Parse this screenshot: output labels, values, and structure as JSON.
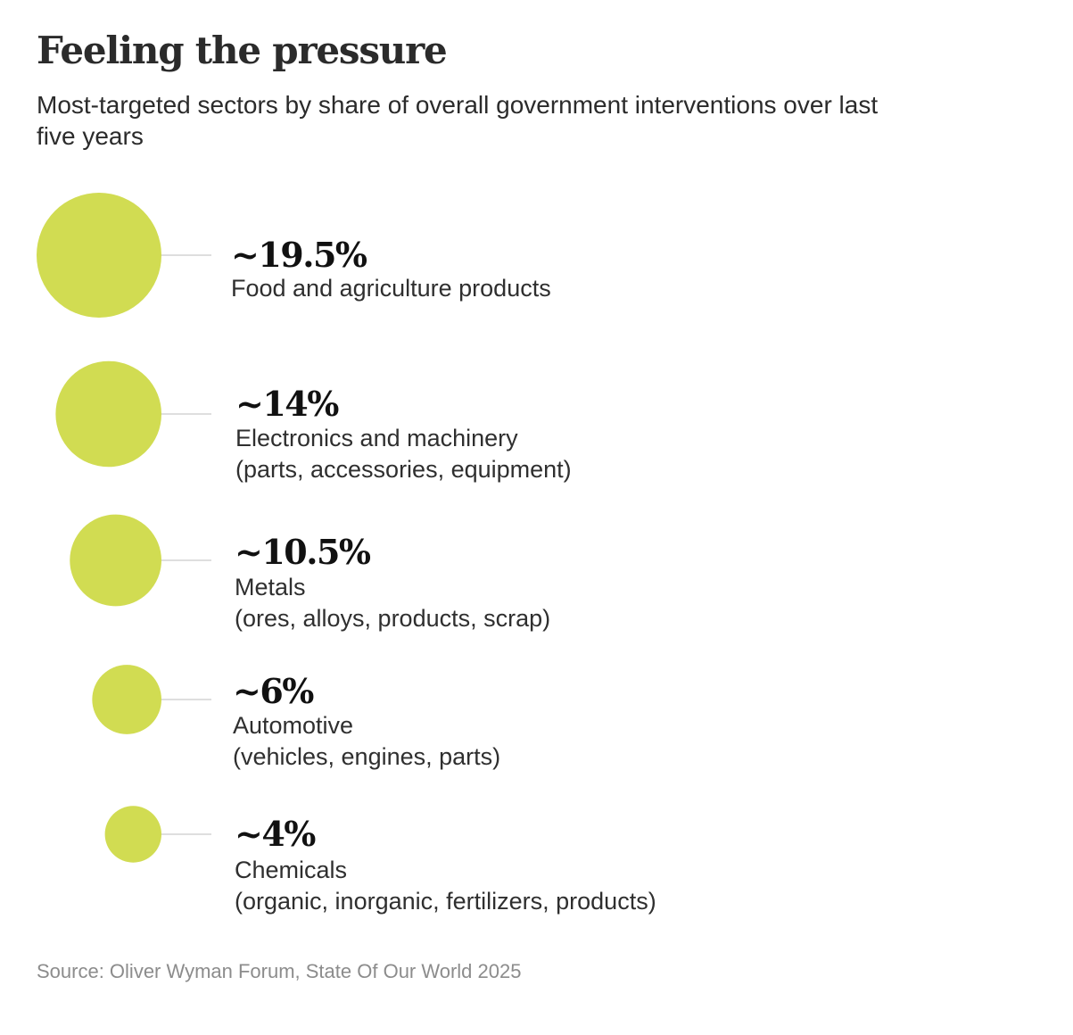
{
  "chart_data": {
    "type": "bubble",
    "title": "Feeling the pressure",
    "subtitle": "Most-targeted sectors by share of overall government interventions over last five years",
    "unit": "% of overall government interventions",
    "bubble_color": "#d1dc52",
    "connector_color": "#dedede",
    "items": [
      {
        "display": "~19.5%",
        "value": 19.5,
        "label": "Food and agriculture products",
        "detail": ""
      },
      {
        "display": "~14%",
        "value": 14,
        "label": "Electronics and machinery",
        "detail": "(parts, accessories, equipment)"
      },
      {
        "display": "~10.5%",
        "value": 10.5,
        "label": "Metals",
        "detail": "(ores, alloys, products, scrap)"
      },
      {
        "display": "~6%",
        "value": 6,
        "label": "Automotive",
        "detail": "(vehicles, engines, parts)"
      },
      {
        "display": "~4%",
        "value": 4,
        "label": "Chemicals",
        "detail": "(organic, inorganic, fertilizers, products)"
      }
    ],
    "source": "Source: Oliver Wyman Forum, State Of Our World 2025"
  }
}
